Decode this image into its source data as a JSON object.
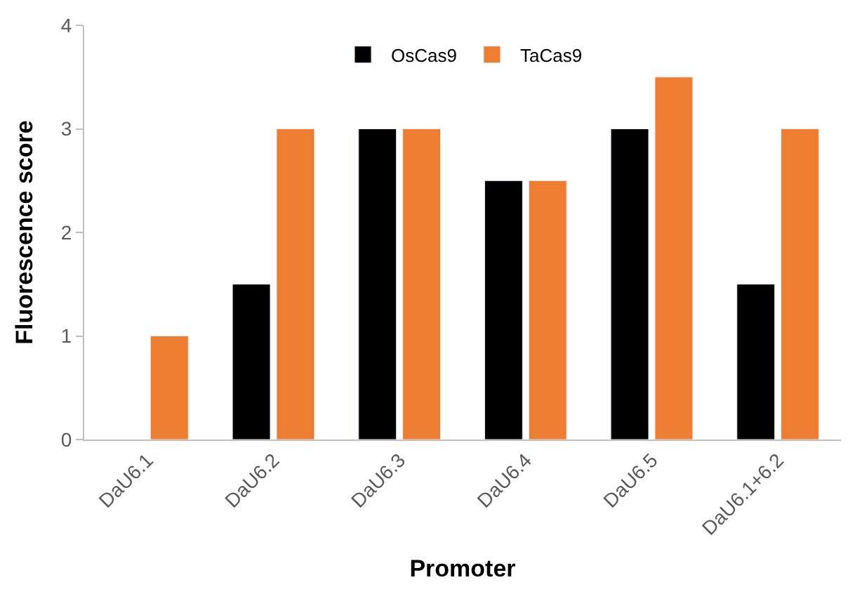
{
  "chart_data": {
    "type": "bar",
    "xlabel": "Promoter",
    "ylabel": "Fluorescence score",
    "categories": [
      "DaU6.1",
      "DaU6.2",
      "DaU6.3",
      "DaU6.4",
      "DaU6.5",
      "DaU6.1+6.2"
    ],
    "series": [
      {
        "name": "OsCas9",
        "color": "#000000",
        "values": [
          null,
          1.5,
          3,
          2.5,
          3,
          1.5
        ]
      },
      {
        "name": "TaCas9",
        "color": "#ed7d31",
        "values": [
          1,
          3,
          3,
          2.5,
          3.5,
          3
        ]
      }
    ],
    "ylim": [
      0,
      4
    ],
    "yticks": [
      0,
      1,
      2,
      3,
      4
    ],
    "legend": "top"
  }
}
